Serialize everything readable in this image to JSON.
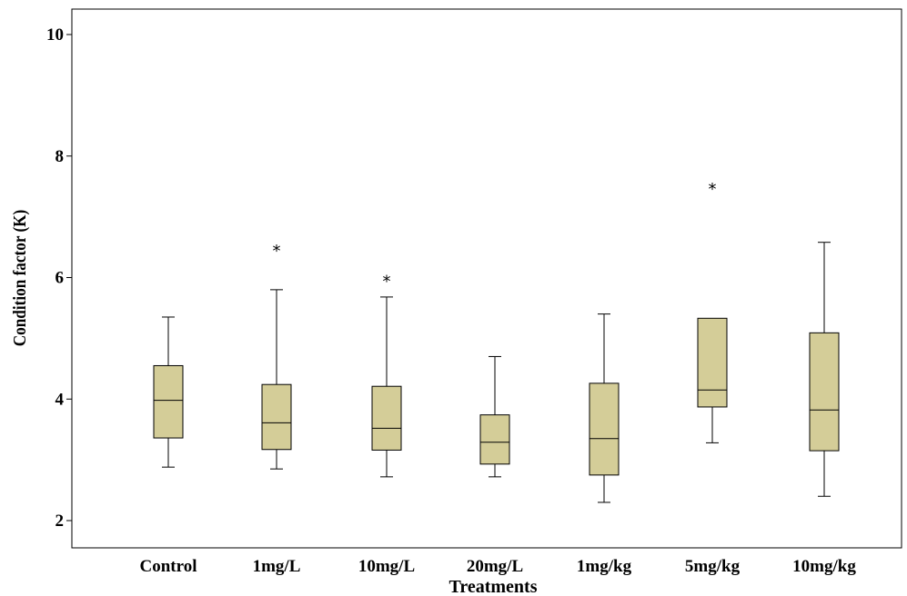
{
  "chart_data": {
    "type": "boxplot",
    "xlabel": "Treatments",
    "ylabel": "Condition factor (K)",
    "ylim": [
      1.6,
      10.5
    ],
    "yticks": [
      2,
      4,
      6,
      8,
      10
    ],
    "grid": false,
    "box_color": "#d4cd98",
    "categories": [
      "Control",
      "1mg/L",
      "10mg/L",
      "20mg/L",
      "1mg/kg",
      "5mg/kg",
      "10mg/kg"
    ],
    "boxes": [
      {
        "min": 2.88,
        "q1": 3.36,
        "median": 3.98,
        "q3": 4.55,
        "max": 5.35,
        "outliers": []
      },
      {
        "min": 2.85,
        "q1": 3.17,
        "median": 3.61,
        "q3": 4.24,
        "max": 5.8,
        "outliers": [
          6.5
        ]
      },
      {
        "min": 2.72,
        "q1": 3.16,
        "median": 3.52,
        "q3": 4.21,
        "max": 5.68,
        "outliers": [
          6.0
        ]
      },
      {
        "min": 2.72,
        "q1": 2.93,
        "median": 3.29,
        "q3": 3.74,
        "max": 4.7,
        "outliers": []
      },
      {
        "min": 2.3,
        "q1": 2.75,
        "median": 3.35,
        "q3": 4.26,
        "max": 5.4,
        "outliers": []
      },
      {
        "min": 3.28,
        "q1": 3.87,
        "median": 4.15,
        "q3": 5.33,
        "max": 5.33,
        "outliers": [
          7.52
        ]
      },
      {
        "min": 2.4,
        "q1": 3.15,
        "median": 3.82,
        "q3": 5.09,
        "max": 6.58,
        "outliers": []
      }
    ]
  }
}
